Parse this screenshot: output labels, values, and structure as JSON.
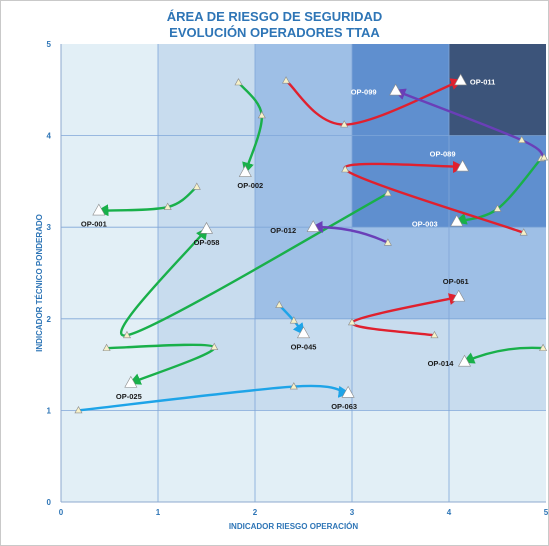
{
  "chart_data": {
    "type": "scatter",
    "title": "ÁREA DE RIESGO DE SEGURIDAD",
    "subtitle": "EVOLUCIÓN OPERADORES TTAA",
    "xlabel": "INDICADOR RIESGO OPERACIÓN",
    "ylabel": "INDICADOR TÉCNICO PONDERADO",
    "xlim": [
      0,
      5
    ],
    "ylim": [
      0,
      5
    ],
    "x_ticks": [
      "0",
      "1",
      "2",
      "3",
      "4",
      "5"
    ],
    "y_ticks": [
      "0",
      "1",
      "2",
      "3",
      "4",
      "5"
    ],
    "grid": true,
    "colors": {
      "zone_1": "#e2eff6",
      "zone_2": "#c8dcee",
      "zone_3": "#9ebfe6",
      "zone_4": "#5f8fcf",
      "zone_5": "#3c547a",
      "green": "#19b04a",
      "red": "#e0202e",
      "purple": "#6a3fb8",
      "cyan": "#1ea4e8",
      "title": "#2e75b6"
    },
    "zones": [
      {
        "level": 1,
        "x": [
          0,
          5
        ],
        "y": [
          0,
          5
        ],
        "color": "#e2eff6"
      },
      {
        "level": 2,
        "x": [
          1,
          5
        ],
        "y": [
          1,
          5
        ],
        "color": "#c8dcee"
      },
      {
        "level": 3,
        "x": [
          2,
          5
        ],
        "y": [
          2,
          5
        ],
        "color": "#9ebfe6"
      },
      {
        "level": 4,
        "x": [
          3,
          5
        ],
        "y": [
          3,
          5
        ],
        "color": "#5f8fcf"
      },
      {
        "level": 5,
        "x": [
          4,
          5
        ],
        "y": [
          4,
          5
        ],
        "color": "#3c547a"
      }
    ],
    "operators": [
      {
        "name": "OP-001",
        "color": "green",
        "path": [
          [
            1.4,
            3.44
          ],
          [
            1.1,
            3.22
          ],
          [
            0.39,
            3.18
          ]
        ]
      },
      {
        "name": "OP-002",
        "color": "green",
        "path": [
          [
            1.83,
            4.58
          ],
          [
            2.07,
            4.22
          ],
          [
            1.9,
            3.6
          ]
        ]
      },
      {
        "name": "OP-003",
        "color": "green",
        "path": [
          [
            4.95,
            3.75
          ],
          [
            4.5,
            3.2
          ],
          [
            4.08,
            3.06
          ]
        ]
      },
      {
        "name": "OP-011",
        "color": "red",
        "path": [
          [
            2.32,
            4.6
          ],
          [
            2.92,
            4.12
          ],
          [
            4.12,
            4.6
          ]
        ]
      },
      {
        "name": "OP-099",
        "color": "purple",
        "path": [
          [
            4.98,
            3.76
          ],
          [
            4.75,
            3.95
          ],
          [
            3.45,
            4.49
          ]
        ]
      },
      {
        "name": "OP-089",
        "color": "red",
        "path": [
          [
            4.77,
            2.94
          ],
          [
            2.93,
            3.63
          ],
          [
            4.14,
            3.66
          ]
        ]
      },
      {
        "name": "OP-058",
        "color": "green",
        "path": [
          [
            3.37,
            3.37
          ],
          [
            0.68,
            1.82
          ],
          [
            1.5,
            2.98
          ]
        ]
      },
      {
        "name": "OP-012",
        "color": "purple",
        "path": [
          [
            3.37,
            2.83
          ],
          [
            2.6,
            3.0
          ]
        ]
      },
      {
        "name": "OP-061",
        "color": "red",
        "path": [
          [
            3.85,
            1.82
          ],
          [
            3.0,
            1.96
          ],
          [
            4.1,
            2.24
          ]
        ]
      },
      {
        "name": "OP-045",
        "color": "cyan",
        "path": [
          [
            2.25,
            2.15
          ],
          [
            2.4,
            1.98
          ],
          [
            2.5,
            1.84
          ]
        ]
      },
      {
        "name": "OP-014",
        "color": "green",
        "path": [
          [
            4.97,
            1.68
          ],
          [
            4.16,
            1.53
          ]
        ]
      },
      {
        "name": "OP-025",
        "color": "green",
        "path": [
          [
            0.47,
            1.68
          ],
          [
            1.58,
            1.69
          ],
          [
            0.72,
            1.3
          ]
        ]
      },
      {
        "name": "OP-063",
        "color": "cyan",
        "path": [
          [
            0.18,
            1.0
          ],
          [
            2.4,
            1.26
          ],
          [
            2.96,
            1.19
          ]
        ]
      }
    ]
  }
}
